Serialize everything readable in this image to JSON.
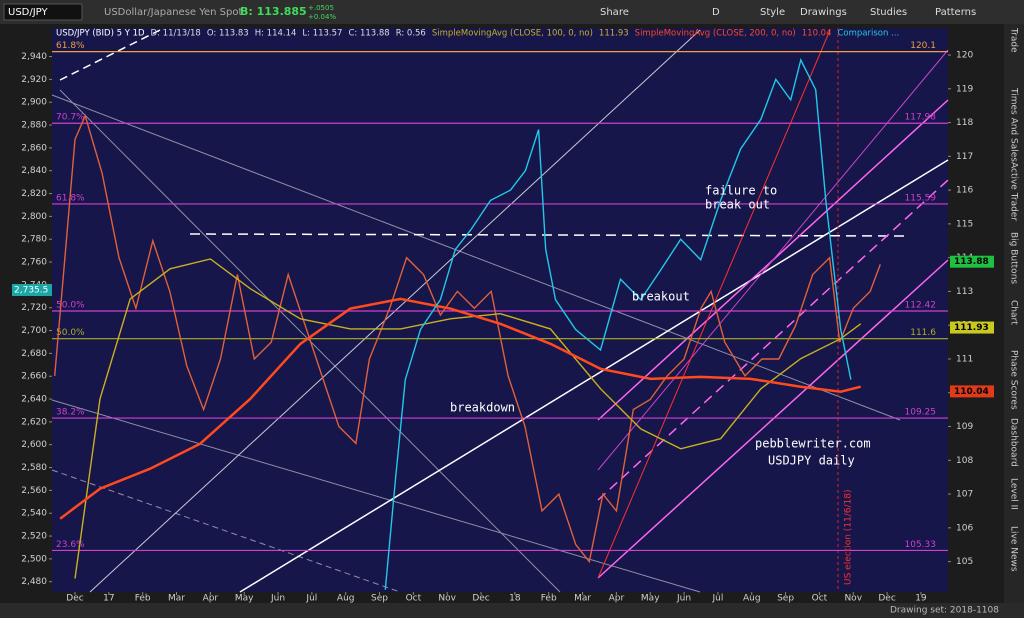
{
  "toolbar": {
    "symbol": "USD/JPY",
    "description": "USDollar/Japanese Yen Spot",
    "bid": "B: 113.885",
    "change": "+.0505",
    "change_pct": "+0.04%",
    "buttons": [
      "Share",
      "D",
      "Style",
      "Drawings",
      "Studies",
      "Patterns"
    ]
  },
  "sidebar": [
    "Trade",
    "Times And Sales",
    "Active Trader",
    "Big Buttons",
    "Chart",
    "Phase Scores",
    "Dashboard",
    "Level II",
    "Live News"
  ],
  "status": "Drawing set: 2018-1108",
  "chart_data": {
    "type": "line",
    "header": [
      "D: 11/13/18",
      "O: 113.83",
      "H: 114.14",
      "L: 113.57",
      "C: 113.88",
      "R: 0.56"
    ],
    "xlim": [
      -0.68,
      25.8
    ],
    "xticks": [
      {
        "value": 0,
        "label": "Dec"
      },
      {
        "value": 1,
        "label": "17"
      },
      {
        "value": 2,
        "label": "Feb"
      },
      {
        "value": 3,
        "label": "Mar"
      },
      {
        "value": 4,
        "label": "Apr"
      },
      {
        "value": 5,
        "label": "May"
      },
      {
        "value": 6,
        "label": "Jun"
      },
      {
        "value": 7,
        "label": "Jul"
      },
      {
        "value": 8,
        "label": "Aug"
      },
      {
        "value": 9,
        "label": "Sep"
      },
      {
        "value": 10,
        "label": "Oct"
      },
      {
        "value": 11,
        "label": "Nov"
      },
      {
        "value": 12,
        "label": "Dec"
      },
      {
        "value": 13,
        "label": "18"
      },
      {
        "value": 14,
        "label": "Feb"
      },
      {
        "value": 15,
        "label": "Mar"
      },
      {
        "value": 16,
        "label": "Apr"
      },
      {
        "value": 17,
        "label": "May"
      },
      {
        "value": 18,
        "label": "Jun"
      },
      {
        "value": 19,
        "label": "Jul"
      },
      {
        "value": 20,
        "label": "Aug"
      },
      {
        "value": 21,
        "label": "Sep"
      },
      {
        "value": 22,
        "label": "Oct"
      },
      {
        "value": 23,
        "label": "Nov"
      },
      {
        "value": 24,
        "label": "Dec"
      },
      {
        "value": 25,
        "label": "19"
      }
    ],
    "ylim": [
      2471,
      2965
    ],
    "yticks": [
      {
        "value": 2480,
        "label": "2,480"
      },
      {
        "value": 2500,
        "label": "2,500"
      },
      {
        "value": 2520,
        "label": "2,520"
      },
      {
        "value": 2540,
        "label": "2,540"
      },
      {
        "value": 2560,
        "label": "2,560"
      },
      {
        "value": 2580,
        "label": "2,580"
      },
      {
        "value": 2600,
        "label": "2,600"
      },
      {
        "value": 2620,
        "label": "2,620"
      },
      {
        "value": 2640,
        "label": "2,640"
      },
      {
        "value": 2660,
        "label": "2,660"
      },
      {
        "value": 2680,
        "label": "2,680"
      },
      {
        "value": 2700,
        "label": "2,700"
      },
      {
        "value": 2720,
        "label": "2,720"
      },
      {
        "value": 2740,
        "label": "2,740"
      },
      {
        "value": 2760,
        "label": "2,760"
      },
      {
        "value": 2780,
        "label": "2,780"
      },
      {
        "value": 2800,
        "label": "2,800"
      },
      {
        "value": 2820,
        "label": "2,820"
      },
      {
        "value": 2840,
        "label": "2,840"
      },
      {
        "value": 2860,
        "label": "2,860"
      },
      {
        "value": 2880,
        "label": "2,880"
      },
      {
        "value": 2900,
        "label": "2,900"
      },
      {
        "value": 2920,
        "label": "2,920"
      },
      {
        "value": 2940,
        "label": "2,940"
      }
    ],
    "y2lim": [
      104.1,
      120.8
    ],
    "y2ticks": [
      105,
      106,
      107,
      108,
      109,
      110,
      111,
      112,
      113,
      114,
      115,
      116,
      117,
      118,
      119,
      120
    ],
    "left_tag": {
      "value": 2735.5,
      "label": "2,735.5",
      "color": "#1aa6a6"
    },
    "price_tags": [
      {
        "value": 113.88,
        "color": "#1fbf3f"
      },
      {
        "value": 111.93,
        "color": "#c8c820"
      },
      {
        "value": 110.04,
        "color": "#e03a1a"
      }
    ],
    "fib_levels": [
      {
        "label": "61.8%",
        "value": 120.1,
        "color": "#f0a040"
      },
      {
        "label": "70.7%",
        "value": 117.98,
        "color": "#d040d0"
      },
      {
        "label": "61.8%",
        "value": 115.59,
        "color": "#d040d0"
      },
      {
        "label": "50.0%",
        "value": 112.42,
        "color": "#d040d0"
      },
      {
        "label": "50.0%",
        "value": 111.6,
        "color": "#b0b020"
      },
      {
        "label": "38.2%",
        "value": 109.25,
        "color": "#d040d0"
      },
      {
        "label": "23.6%",
        "value": 105.33,
        "color": "#d040d0"
      }
    ],
    "series": [
      {
        "name": "USD/JPY (BID) 5 Y 1D",
        "color": "#e0603a",
        "axis": "y2",
        "x": [
          -0.6,
          -0.3,
          0,
          0.3,
          0.8,
          1.3,
          1.8,
          2.3,
          2.8,
          3.3,
          3.8,
          4.3,
          4.8,
          5.3,
          5.8,
          6.3,
          6.8,
          7.3,
          7.8,
          8.3,
          8.7,
          9.3,
          9.8,
          10.3,
          10.8,
          11.3,
          11.8,
          12.3,
          12.8,
          13.3,
          13.8,
          14.3,
          14.8,
          15.2,
          15.6,
          16.0,
          16.5,
          17.0,
          17.5,
          18.0,
          18.5,
          18.8,
          19.2,
          19.8,
          20.3,
          20.8,
          21.3,
          21.8,
          22.3,
          22.6,
          23.0,
          23.5,
          23.8
        ],
        "values": [
          110.5,
          114,
          117.5,
          118.2,
          116.5,
          114,
          112.5,
          114.5,
          113,
          110.8,
          109.5,
          111,
          113.5,
          111,
          111.5,
          113.5,
          112,
          110.5,
          109,
          108.5,
          111,
          112.5,
          114,
          113.5,
          112.3,
          113,
          112.5,
          113,
          110.5,
          109,
          106.5,
          107,
          105.5,
          105,
          107,
          106.5,
          109.5,
          109.8,
          110.5,
          111,
          112.5,
          113,
          111.5,
          110.5,
          111,
          111,
          112,
          113.5,
          114,
          111.5,
          112.5,
          113,
          113.8
        ]
      },
      {
        "name": "SimpleMovingAvg (CLOSE, 100, 0, no)",
        "value_label": "111.93",
        "color": "#c8b020",
        "axis": "y2",
        "x": [
          0,
          0.74,
          1.63,
          2.81,
          4.0,
          5.18,
          6.66,
          8.14,
          9.62,
          11.09,
          12.57,
          14.05,
          15.53,
          16.72,
          17.9,
          19.08,
          20.27,
          21.45,
          22.63,
          23.22
        ],
        "values": [
          104.5,
          109.82,
          112.78,
          113.67,
          113.96,
          113.08,
          112.19,
          111.89,
          111.89,
          112.19,
          112.34,
          111.89,
          110.12,
          108.93,
          108.34,
          108.64,
          110.12,
          111.01,
          111.6,
          112.04
        ]
      },
      {
        "name": "SimpleMovingAvg (CLOSE, 200, 0, no)",
        "value_label": "110.04",
        "color": "#ff4a20",
        "axis": "y2",
        "x": [
          -0.44,
          0.74,
          2.22,
          3.7,
          5.18,
          6.66,
          8.14,
          9.62,
          11.09,
          12.57,
          14.05,
          15.53,
          17.01,
          18.49,
          19.97,
          21.45,
          22.63,
          23.22
        ],
        "values": [
          106.27,
          107.16,
          107.75,
          108.49,
          109.82,
          111.45,
          112.49,
          112.78,
          112.49,
          112.04,
          111.45,
          110.71,
          110.41,
          110.47,
          110.41,
          110.18,
          110.03,
          110.18
        ]
      },
      {
        "name": "Comparison ...",
        "color": "#22c8e8",
        "x": [
          9.17,
          9.47,
          9.76,
          10.21,
          10.8,
          11.24,
          11.69,
          12.28,
          12.87,
          13.31,
          13.7,
          13.91,
          14.2,
          14.79,
          15.53,
          16.12,
          16.72,
          17.31,
          17.9,
          18.49,
          19.08,
          19.67,
          20.27,
          20.71,
          21.15,
          21.45,
          21.89,
          22.19,
          22.63,
          22.93
        ],
        "values": [
          2473,
          2569,
          2657,
          2701,
          2727,
          2771,
          2788,
          2814,
          2823,
          2840,
          2876,
          2771,
          2727,
          2701,
          2683,
          2745,
          2727,
          2753,
          2780,
          2762,
          2814,
          2859,
          2885,
          2920,
          2902,
          2937,
          2911,
          2814,
          2701,
          2657
        ]
      }
    ],
    "annotations": {
      "failure": [
        "failure to",
        "break out"
      ],
      "breakout": "breakout",
      "breakdown": "breakdown",
      "site": "pebblewriter.com",
      "caption": "USDJPY daily",
      "election": "US election (11/6/18)"
    }
  }
}
